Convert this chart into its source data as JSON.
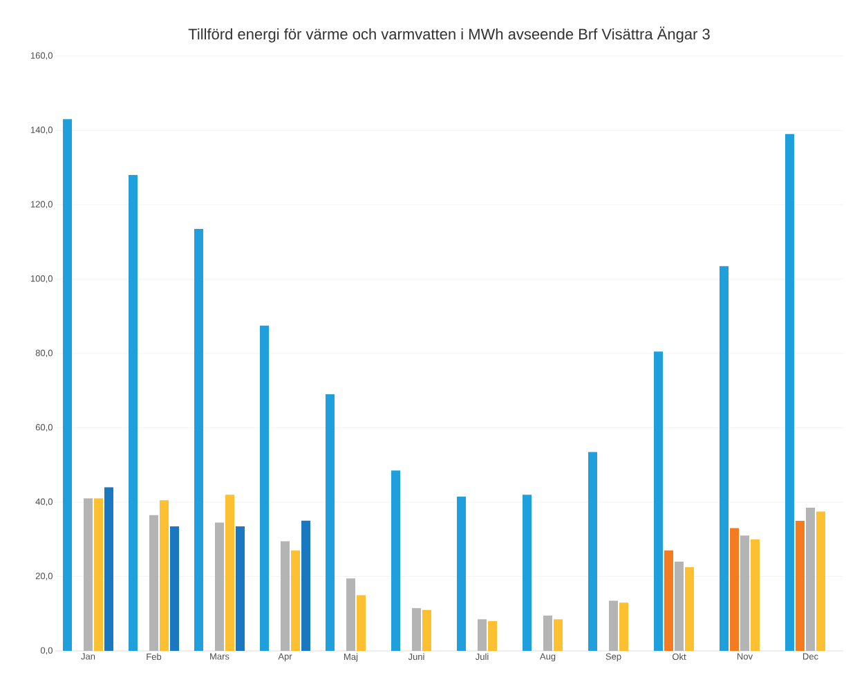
{
  "chart_data": {
    "type": "bar",
    "title": "Tillförd energi för värme och varmvatten i MWh avseende Brf Visättra Ängar 3",
    "categories": [
      "Jan",
      "Feb",
      "Mars",
      "Apr",
      "Maj",
      "Juni",
      "Juli",
      "Aug",
      "Sep",
      "Okt",
      "Nov",
      "Dec"
    ],
    "series": [
      {
        "color": "#1fa0dc",
        "values": [
          143,
          128,
          113.5,
          87.5,
          69,
          48.5,
          41.5,
          42,
          53.5,
          80.5,
          103.5,
          139
        ]
      },
      {
        "color": "#f47b20",
        "values": [
          null,
          null,
          null,
          null,
          null,
          null,
          null,
          null,
          null,
          27,
          33,
          35
        ]
      },
      {
        "color": "#b4b4b4",
        "values": [
          41,
          36.5,
          34.5,
          29.5,
          19.5,
          11.5,
          8.5,
          9.5,
          13.5,
          24,
          31,
          38.5
        ]
      },
      {
        "color": "#fcc030",
        "values": [
          41,
          40.5,
          42,
          27,
          15,
          11,
          8,
          8.5,
          13,
          22.5,
          30,
          37.5
        ]
      },
      {
        "color": "#1a78c0",
        "values": [
          44,
          33.5,
          33.5,
          35,
          null,
          null,
          null,
          null,
          null,
          null,
          null,
          null
        ]
      }
    ],
    "ylim": [
      0,
      160
    ],
    "yticks": [
      {
        "value": 0,
        "label": "0,0"
      },
      {
        "value": 20,
        "label": "20,0"
      },
      {
        "value": 40,
        "label": "40,0"
      },
      {
        "value": 60,
        "label": "60,0"
      },
      {
        "value": 80,
        "label": "80,0"
      },
      {
        "value": 100,
        "label": "100,0"
      },
      {
        "value": 120,
        "label": "120,0"
      },
      {
        "value": 140,
        "label": "140,0"
      },
      {
        "value": 160,
        "label": "160,0"
      }
    ],
    "grid": "y"
  }
}
